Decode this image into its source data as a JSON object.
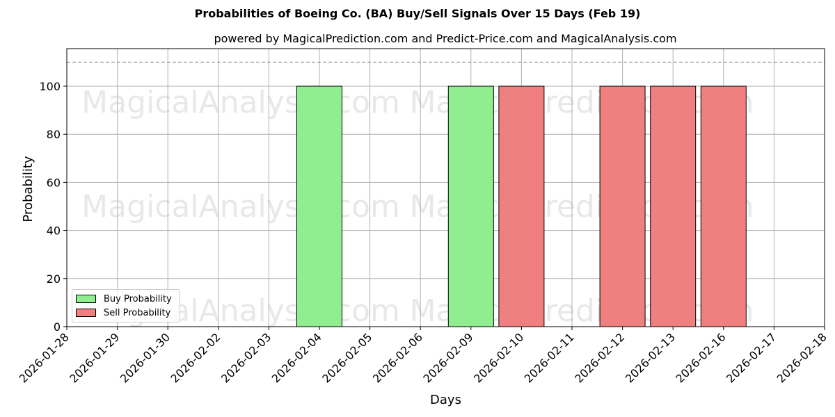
{
  "title": "Probabilities of Boeing Co. (BA) Buy/Sell Signals Over 15 Days (Feb 19)",
  "subtitle": "powered by MagicalPrediction.com and Predict-Price.com and MagicalAnalysis.com",
  "colors": {
    "buy": "#90EE90",
    "sell": "#F08080"
  },
  "legend": {
    "buy_label": "Buy Probability",
    "sell_label": "Sell Probability"
  },
  "watermarks": [
    "MagicalAnalysis.com",
    "MagicalPrediction.com"
  ],
  "chart_data": {
    "type": "bar",
    "title": "Probabilities of Boeing Co. (BA) Buy/Sell Signals Over 15 Days (Feb 19)",
    "subtitle": "powered by MagicalPrediction.com and Predict-Price.com and MagicalAnalysis.com",
    "xlabel": "Days",
    "ylabel": "Probability",
    "ylim": [
      0,
      115
    ],
    "yticks": [
      0,
      20,
      40,
      60,
      80,
      100
    ],
    "reference_line": {
      "y": 110,
      "style": "dashed"
    },
    "grid": true,
    "legend_position": "lower left",
    "categories": [
      "2026-01-28",
      "2026-01-29",
      "2026-01-30",
      "2026-02-02",
      "2026-02-03",
      "2026-02-04",
      "2026-02-05",
      "2026-02-06",
      "2026-02-09",
      "2026-02-10",
      "2026-02-11",
      "2026-02-12",
      "2026-02-13",
      "2026-02-16",
      "2026-02-17",
      "2026-02-18"
    ],
    "series": [
      {
        "name": "Buy Probability",
        "color": "#90EE90",
        "values": [
          0,
          0,
          0,
          0,
          0,
          100,
          0,
          0,
          100,
          0,
          0,
          0,
          0,
          0,
          0,
          0
        ]
      },
      {
        "name": "Sell Probability",
        "color": "#F08080",
        "values": [
          0,
          0,
          0,
          0,
          0,
          0,
          0,
          0,
          0,
          100,
          0,
          100,
          100,
          100,
          0,
          0
        ]
      }
    ],
    "bars": [
      {
        "date": "2026-02-04",
        "type": "buy",
        "value": 100
      },
      {
        "date": "2026-02-09",
        "type": "buy",
        "value": 100
      },
      {
        "date": "2026-02-10",
        "type": "sell",
        "value": 100
      },
      {
        "date": "2026-02-12",
        "type": "sell",
        "value": 100
      },
      {
        "date": "2026-02-13",
        "type": "sell",
        "value": 100
      },
      {
        "date": "2026-02-16",
        "type": "sell",
        "value": 100
      }
    ]
  }
}
